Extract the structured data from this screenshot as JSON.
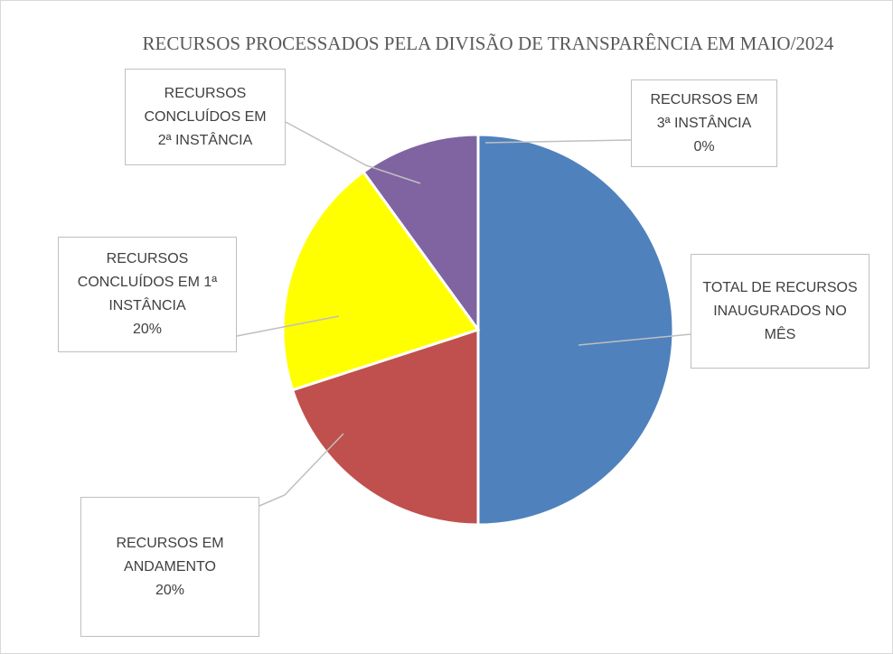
{
  "chart_data": {
    "type": "pie",
    "title": "RECURSOS PROCESSADOS PELA DIVISÃO DE TRANSPARÊNCIA EM MAIO/2024",
    "categories": [
      "TOTAL DE RECURSOS INAUGURADOS NO MÊS",
      "RECURSOS EM ANDAMENTO",
      "RECURSOS CONCLUÍDOS EM 1ª INSTÂNCIA",
      "RECURSOS CONCLUÍDOS EM 2ª INSTÂNCIA",
      "RECURSOS EM 3ª INSTÂNCIA"
    ],
    "values": [
      50,
      20,
      20,
      10,
      0
    ],
    "value_labels": [
      null,
      "20%",
      "20%",
      null,
      "0%"
    ],
    "colors": [
      "#4f81bd",
      "#c0504d",
      "#ffff00",
      "#8064a2",
      "#4bacc6"
    ]
  }
}
